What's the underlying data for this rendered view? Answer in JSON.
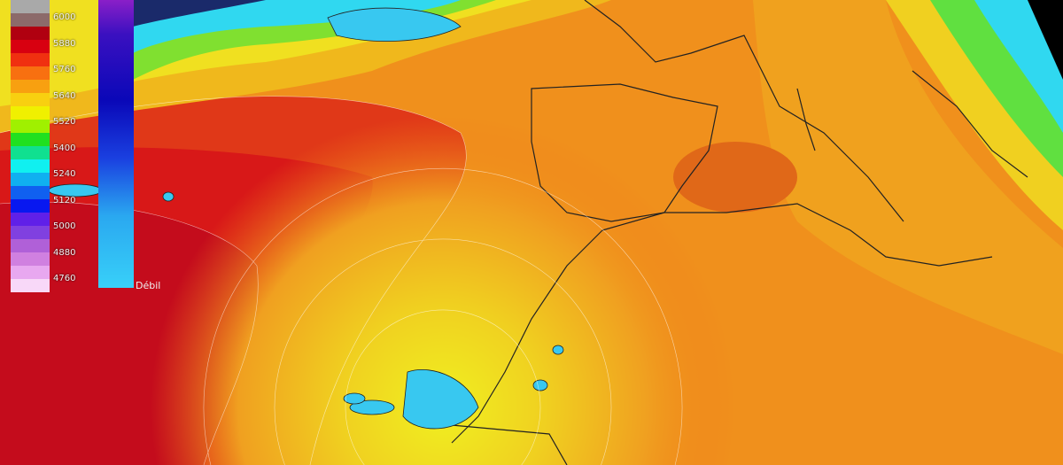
{
  "legend": {
    "labels": [
      "6000",
      "5880",
      "5760",
      "5640",
      "5520",
      "5400",
      "5240",
      "5120",
      "5000",
      "4880",
      "4760"
    ],
    "colors": [
      "#a9a9a9",
      "#8c6a6a",
      "#b00010",
      "#d80010",
      "#f03010",
      "#f87010",
      "#f8a010",
      "#f8d010",
      "#f0f000",
      "#a0f000",
      "#20e020",
      "#10e090",
      "#10f0f0",
      "#10b0f0",
      "#1060f0",
      "#0818f0",
      "#6020e8",
      "#8040e0",
      "#b060d8",
      "#d080e0",
      "#e8a8f0",
      "#f8d8f8"
    ]
  },
  "intensity_legend": {
    "label": "Débil"
  },
  "colors": {
    "deep_red": "#c80018",
    "red": "#e02818",
    "orange": "#f07a18",
    "yellow": "#f0e020",
    "green": "#50e040",
    "cyan": "#30d8f8"
  }
}
